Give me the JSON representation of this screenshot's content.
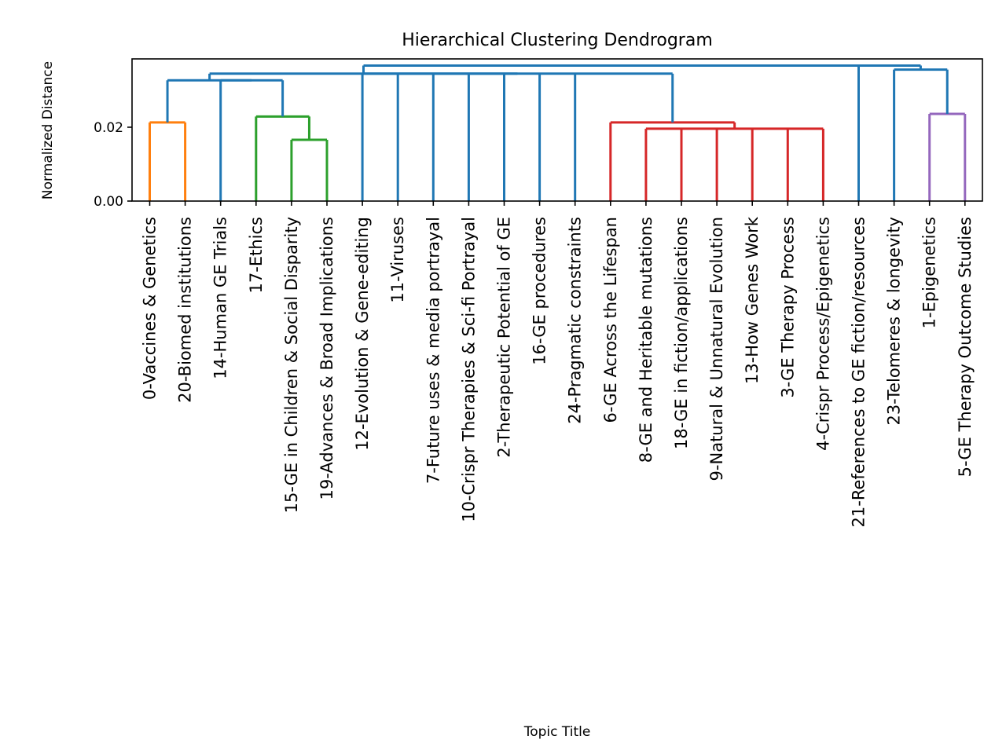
{
  "chart_data": {
    "type": "dendrogram",
    "title": "Hierarchical Clustering Dendrogram",
    "xlabel": "Topic Title",
    "ylabel": "Normalized Distance",
    "ylim": [
      0,
      0.0385
    ],
    "yticks": [
      0.0,
      0.02
    ],
    "ytick_labels": [
      "0.00",
      "0.02"
    ],
    "grid": false,
    "colors": {
      "orange": "#ff7f0e",
      "green": "#2ca02c",
      "red": "#d62728",
      "purple": "#9467bd",
      "blue": "#1f77b4"
    },
    "leaves": [
      "0-Vaccines & Genetics",
      "20-Biomed institutions",
      "14-Human GE Trials",
      "17-Ethics",
      "15-GE in Children & Social Disparity",
      "19-Advances & Broad Implications",
      "12-Evolution & Gene-editing",
      "11-Viruses",
      "7-Future uses & media portrayal",
      "10-Crispr Therapies & Sci-fi Portrayal",
      "2-Therapeutic Potential of GE",
      "16-GE procedures",
      "24-Pragmatic constraints",
      "6-GE Across the Lifespan",
      "8-GE and Heritable mutations",
      "18-GE in fiction/applications",
      "9-Natural & Unnatural Evolution",
      "13-How Genes Work",
      "3-GE Therapy Process",
      "4-Crispr Process/Epigenetics",
      "21-References to GE fiction/resources",
      "23-Telomeres & longevity",
      "1-Epigenetics",
      "5-GE Therapy Outcome Studies"
    ],
    "merges": [
      {
        "members": [
          0,
          1
        ],
        "height": 0.0213,
        "color": "orange"
      },
      {
        "members": [
          4,
          5
        ],
        "height": 0.0166,
        "color": "green"
      },
      {
        "members": [
          3,
          "m1"
        ],
        "height": 0.0229,
        "color": "green"
      },
      {
        "members": [
          2,
          "m2"
        ],
        "height": 0.0327,
        "color": "blue"
      },
      {
        "members": [
          "m0",
          "m3"
        ],
        "height": 0.0327,
        "color": "blue"
      },
      {
        "members": [
          14,
          15,
          16,
          17,
          18,
          19
        ],
        "height": 0.0196,
        "color": "red"
      },
      {
        "members": [
          13,
          "m5"
        ],
        "height": 0.0213,
        "color": "red"
      },
      {
        "members": [
          6,
          7,
          8,
          9,
          10,
          11,
          12,
          "m6"
        ],
        "height": 0.0345,
        "color": "blue"
      },
      {
        "members": [
          "m4",
          "m7"
        ],
        "height": 0.0345,
        "color": "blue"
      },
      {
        "members": [
          22,
          23
        ],
        "height": 0.0236,
        "color": "purple"
      },
      {
        "members": [
          21,
          "m9"
        ],
        "height": 0.0356,
        "color": "blue"
      },
      {
        "members": [
          "m8",
          20,
          "m10"
        ],
        "height": 0.0367,
        "color": "blue"
      }
    ]
  }
}
